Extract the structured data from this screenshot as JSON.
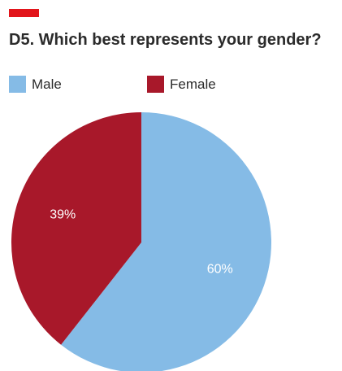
{
  "title": "D5. Which best represents your gender?",
  "accent_color": "#e2151b",
  "chart_data": {
    "type": "pie",
    "title": "D5. Which best represents your gender?",
    "legend_position": "top-left",
    "series": [
      {
        "name": "Male",
        "value": 60,
        "label": "60%",
        "color": "#85bbe6"
      },
      {
        "name": "Female",
        "value": 39,
        "label": "39%",
        "color": "#a8182a"
      }
    ]
  }
}
